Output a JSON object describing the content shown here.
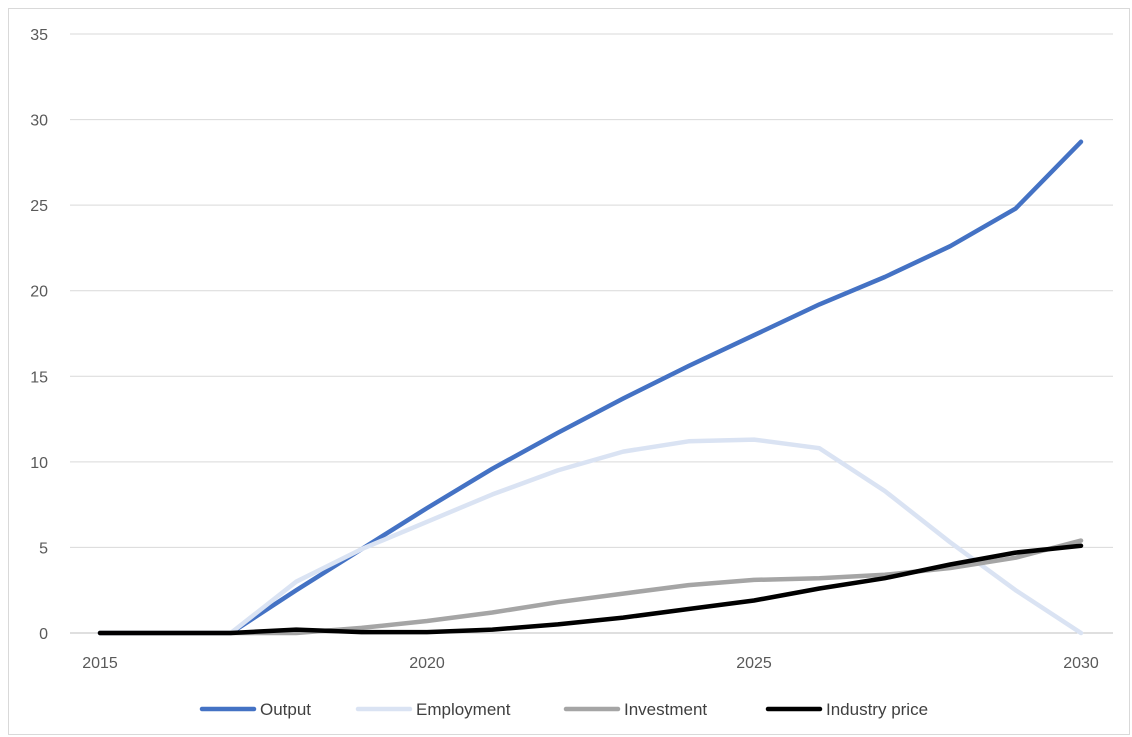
{
  "chart_data": {
    "type": "line",
    "title": "",
    "xlabel": "",
    "ylabel": "",
    "xlim": [
      2015,
      2030
    ],
    "ylim": [
      0,
      35
    ],
    "x": [
      2015,
      2016,
      2017,
      2018,
      2019,
      2020,
      2021,
      2022,
      2023,
      2024,
      2025,
      2026,
      2027,
      2028,
      2029,
      2030
    ],
    "x_ticks": [
      2015,
      2020,
      2025,
      2030
    ],
    "y_ticks": [
      0,
      5,
      10,
      15,
      20,
      25,
      30,
      35
    ],
    "grid": true,
    "legend": "bottom",
    "series": [
      {
        "name": "Output",
        "color": "#4472c4",
        "values": [
          0,
          0,
          0,
          2.5,
          4.9,
          7.3,
          9.6,
          11.7,
          13.7,
          15.6,
          17.4,
          19.2,
          20.8,
          22.6,
          24.8,
          28.7
        ]
      },
      {
        "name": "Employment",
        "color": "#dae3f3",
        "values": [
          0,
          0,
          0,
          3.0,
          4.9,
          6.5,
          8.1,
          9.5,
          10.6,
          11.2,
          11.3,
          10.8,
          8.3,
          5.3,
          2.5,
          0
        ]
      },
      {
        "name": "Investment",
        "color": "#a5a5a5",
        "values": [
          0,
          0,
          0,
          0,
          0.3,
          0.7,
          1.2,
          1.8,
          2.3,
          2.8,
          3.1,
          3.2,
          3.4,
          3.8,
          4.4,
          5.4
        ]
      },
      {
        "name": "Industry price",
        "color": "#000000",
        "values": [
          0,
          0,
          0,
          0.2,
          0.05,
          0.05,
          0.2,
          0.5,
          0.9,
          1.4,
          1.9,
          2.6,
          3.2,
          4.0,
          4.7,
          5.1
        ]
      }
    ]
  }
}
